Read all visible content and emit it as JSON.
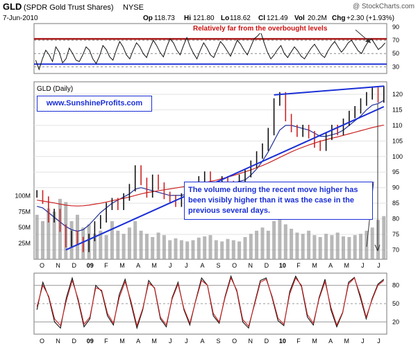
{
  "header": {
    "symbol": "GLD",
    "name": "(SPDR Gold Trust Shares)",
    "exchange": "NYSE",
    "date": "7-Jun-2010",
    "watermark": "@ StockCharts.com",
    "quote": {
      "open_label": "Op",
      "open": "118.73",
      "high_label": "Hi",
      "high": "121.80",
      "low_label": "Lo",
      "low": "118.62",
      "close_label": "Cl",
      "close": "121.49",
      "vol_label": "Vol",
      "vol": "20.2M",
      "chg_label": "Chg",
      "chg": "+2.30 (+1.93%)"
    }
  },
  "annotations": {
    "rsi_note": "Relatively far from the overbought levels",
    "website": "www.SunshineProfits.com",
    "volume_note": "The volume during the recent move higher has been visibly higher than it was the case in the previous several days."
  },
  "colors": {
    "price": "#111111",
    "down_bar": "#cc2222",
    "ma_short": "#1f2f99",
    "ma_long": "#cc2222",
    "trendline": "#1a2fd6",
    "rsi_red": "#aa1a1a",
    "rsi_blue": "#1a2fd6",
    "volume": "#9a9a9a",
    "stoch_k": "#111111",
    "stoch_d": "#cc2222"
  },
  "chart_data": [
    {
      "type": "line",
      "panel": "rsi",
      "title": "",
      "y_ticks": [
        30,
        50,
        70,
        90
      ],
      "ylim": [
        20,
        95
      ],
      "reference_lines": [
        {
          "value": 70,
          "style": "dashed"
        },
        {
          "value": 50,
          "style": "dashed"
        },
        {
          "value": 30,
          "style": "dashed"
        }
      ],
      "overbought_band": 72,
      "oversold_band": 34,
      "series": [
        {
          "values": [
            40,
            26,
            42,
            55,
            48,
            38,
            60,
            52,
            36,
            42,
            58,
            50,
            40,
            38,
            48,
            60,
            55,
            42,
            35,
            46,
            62,
            56,
            45,
            40,
            55,
            68,
            60,
            48,
            42,
            55,
            66,
            60,
            50,
            44,
            58,
            70,
            62,
            52,
            45,
            60,
            72,
            66,
            55,
            48,
            62,
            74,
            60,
            50,
            42,
            55,
            66,
            58,
            48,
            44,
            56,
            68,
            62,
            54,
            46,
            58,
            70,
            64,
            55,
            48,
            60,
            72,
            76,
            82,
            66,
            52,
            42,
            48,
            56,
            62,
            50,
            44,
            52,
            60,
            54,
            46,
            42,
            50,
            58,
            64,
            56,
            48,
            44,
            54,
            62,
            68,
            60,
            52,
            58,
            66,
            70,
            62,
            54,
            50,
            60,
            68,
            72,
            64,
            56,
            60,
            66
          ]
        }
      ]
    },
    {
      "type": "line",
      "panel": "price",
      "title": "GLD (Daily)",
      "x_tick_labels": [
        "O",
        "N",
        "D",
        "09",
        "F",
        "M",
        "A",
        "M",
        "J",
        "J",
        "A",
        "S",
        "O",
        "N",
        "D",
        "10",
        "F",
        "M",
        "A",
        "M",
        "J",
        "J"
      ],
      "y_ticks": [
        70,
        75,
        80,
        85,
        90,
        95,
        100,
        105,
        110,
        115,
        120
      ],
      "ylim": [
        67,
        124
      ],
      "series": [
        {
          "values": [
            88.0,
            86.0,
            80.0,
            82.0,
            77.0,
            72.0,
            75.0,
            73.0,
            70.5,
            74.0,
            78.0,
            80.0,
            84.0,
            85.5,
            84.0,
            87.0,
            90.0,
            96.0,
            92.0,
            88.0,
            93.0,
            90.5,
            87.5,
            86.5,
            85.0,
            87.0,
            88.5,
            90.5,
            92.5,
            94.0,
            90.5,
            89.5,
            92.5,
            91.0,
            90.5,
            93.0,
            94.5,
            97.5,
            100.5,
            103.0,
            108.0,
            117.5,
            119.5,
            112.5,
            109.0,
            107.5,
            109.0,
            107.0,
            104.0,
            103.0,
            106.5,
            109.0,
            108.0,
            111.0,
            113.5,
            115.0,
            117.5,
            119.5,
            121.0,
            118.5,
            121.5
          ]
        },
        {
          "values": [
            84.0,
            83.5,
            82.0,
            80.5,
            79.0,
            77.5,
            76.5,
            76.0,
            76.5,
            78.0,
            80.0,
            82.0,
            83.5,
            85.0,
            86.0,
            87.0,
            88.0,
            89.5,
            90.0,
            89.5,
            89.0,
            88.5,
            88.0,
            87.5,
            87.5,
            87.5,
            88.0,
            88.5,
            89.5,
            90.5,
            91.0,
            91.0,
            91.5,
            91.5,
            91.5,
            92.0,
            92.5,
            94.0,
            96.0,
            98.5,
            101.5,
            105.0,
            108.5,
            110.0,
            110.0,
            109.5,
            109.0,
            108.5,
            107.5,
            106.5,
            106.5,
            107.0,
            107.5,
            108.5,
            110.0,
            111.5,
            113.0,
            115.0,
            116.5,
            117.0,
            118.0
          ]
        },
        {
          "values": [
            86.0,
            85.7,
            85.4,
            85.1,
            84.7,
            84.4,
            84.2,
            84.1,
            84.2,
            84.4,
            84.7,
            85.0,
            85.4,
            85.8,
            86.2,
            86.6,
            87.0,
            87.5,
            88.0,
            88.4,
            88.7,
            89.0,
            89.3,
            89.6,
            89.9,
            90.2,
            90.5,
            90.8,
            91.2,
            91.6,
            92.0,
            92.4,
            92.9,
            93.4,
            93.9,
            94.5,
            95.1,
            95.7,
            96.4,
            97.1,
            97.9,
            98.8,
            99.7,
            100.6,
            101.5,
            102.3,
            103.0,
            103.7,
            104.3,
            104.9,
            105.4,
            105.9,
            106.3,
            106.8,
            107.3,
            107.8,
            108.3,
            108.8,
            109.3,
            109.7,
            110.1
          ]
        }
      ],
      "trendlines": [
        {
          "from": {
            "x": 5,
            "y": 70.0
          },
          "to": {
            "x": 60,
            "y": 116.0
          }
        },
        {
          "from": {
            "x": 41,
            "y": 119.8
          },
          "to": {
            "x": 60,
            "y": 122.6
          }
        }
      ]
    },
    {
      "type": "bar",
      "panel": "volume",
      "title": "",
      "y_ticks": [
        "25M",
        "50M",
        "75M",
        "100M"
      ],
      "ylim": [
        0,
        120
      ],
      "values": [
        70,
        60,
        80,
        75,
        95,
        90,
        60,
        70,
        50,
        55,
        40,
        45,
        38,
        60,
        45,
        40,
        50,
        60,
        45,
        40,
        35,
        42,
        38,
        30,
        33,
        30,
        28,
        30,
        34,
        36,
        38,
        30,
        28,
        32,
        30,
        28,
        35,
        40,
        45,
        50,
        45,
        60,
        80,
        55,
        48,
        42,
        40,
        45,
        38,
        35,
        40,
        38,
        42,
        36,
        35,
        38,
        40,
        45,
        50,
        62,
        68
      ]
    },
    {
      "type": "line",
      "panel": "stochastic",
      "title": "",
      "y_ticks": [
        20,
        50,
        80
      ],
      "ylim": [
        0,
        100
      ],
      "reference_lines": [
        {
          "value": 80,
          "style": "solid"
        },
        {
          "value": 50,
          "style": "dashed"
        },
        {
          "value": 20,
          "style": "solid"
        }
      ],
      "series": [
        {
          "values": [
            40,
            85,
            60,
            20,
            10,
            60,
            92,
            55,
            12,
            25,
            80,
            70,
            30,
            15,
            65,
            90,
            50,
            10,
            40,
            88,
            75,
            25,
            12,
            60,
            85,
            40,
            15,
            55,
            92,
            80,
            30,
            18,
            62,
            95,
            70,
            20,
            10,
            50,
            88,
            92,
            60,
            22,
            14,
            70,
            95,
            78,
            28,
            15,
            60,
            90,
            40,
            12,
            35,
            85,
            93,
            60,
            25,
            58,
            82,
            90
          ]
        },
        {
          "values": [
            45,
            80,
            62,
            25,
            14,
            55,
            88,
            58,
            16,
            28,
            76,
            72,
            34,
            18,
            60,
            86,
            54,
            14,
            42,
            84,
            76,
            28,
            15,
            58,
            82,
            42,
            18,
            54,
            88,
            80,
            34,
            20,
            60,
            92,
            72,
            24,
            13,
            48,
            85,
            90,
            62,
            26,
            16,
            66,
            92,
            80,
            32,
            18,
            58,
            86,
            44,
            15,
            36,
            82,
            92,
            64,
            28,
            56,
            80,
            88
          ]
        }
      ]
    }
  ]
}
